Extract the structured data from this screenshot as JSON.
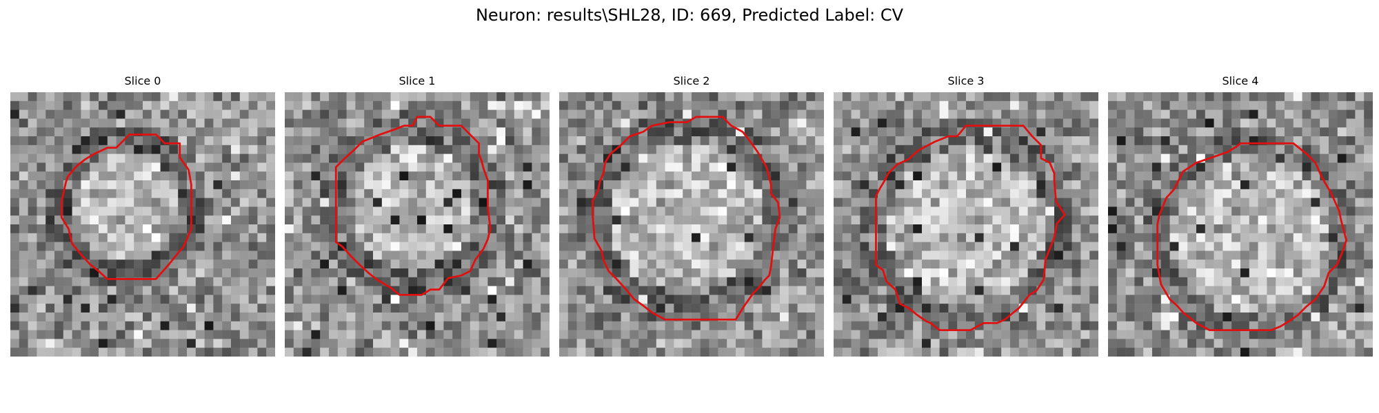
{
  "figure": {
    "title": "Neuron: results\\SHL28, ID: 669, Predicted Label: CV"
  },
  "panels": [
    {
      "title": "Slice 0"
    },
    {
      "title": "Slice 1"
    },
    {
      "title": "Slice 2"
    },
    {
      "title": "Slice 3"
    },
    {
      "title": "Slice 4"
    }
  ],
  "colors": {
    "contour": "#e01010",
    "background": "#ffffff"
  }
}
